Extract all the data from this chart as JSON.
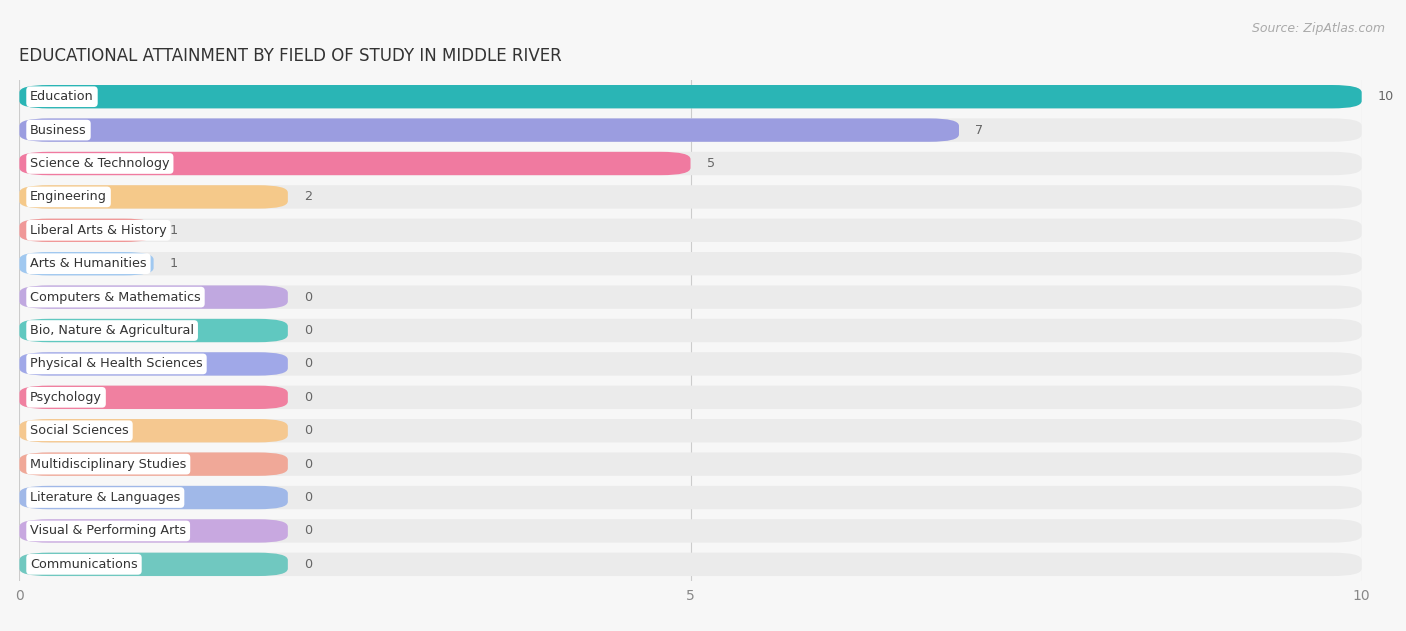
{
  "title": "EDUCATIONAL ATTAINMENT BY FIELD OF STUDY IN MIDDLE RIVER",
  "source": "Source: ZipAtlas.com",
  "categories": [
    "Education",
    "Business",
    "Science & Technology",
    "Engineering",
    "Liberal Arts & History",
    "Arts & Humanities",
    "Computers & Mathematics",
    "Bio, Nature & Agricultural",
    "Physical & Health Sciences",
    "Psychology",
    "Social Sciences",
    "Multidisciplinary Studies",
    "Literature & Languages",
    "Visual & Performing Arts",
    "Communications"
  ],
  "values": [
    10,
    7,
    5,
    2,
    1,
    1,
    0,
    0,
    0,
    0,
    0,
    0,
    0,
    0,
    0
  ],
  "colors": [
    "#2ab5b5",
    "#9b9de0",
    "#f07aa0",
    "#f5c98a",
    "#f09898",
    "#a0c8f0",
    "#c0a8e0",
    "#60c8c0",
    "#a0a8e8",
    "#f080a0",
    "#f5c890",
    "#f0a898",
    "#a0b8e8",
    "#c8a8e0",
    "#70c8c0"
  ],
  "zero_bar_width": 2.0,
  "xlim": [
    0,
    10
  ],
  "background_color": "#f7f7f7",
  "row_bg_color": "#ffffff",
  "bar_bg_color": "#ebebeb",
  "title_fontsize": 12,
  "label_fontsize": 9.2,
  "source_fontsize": 9
}
